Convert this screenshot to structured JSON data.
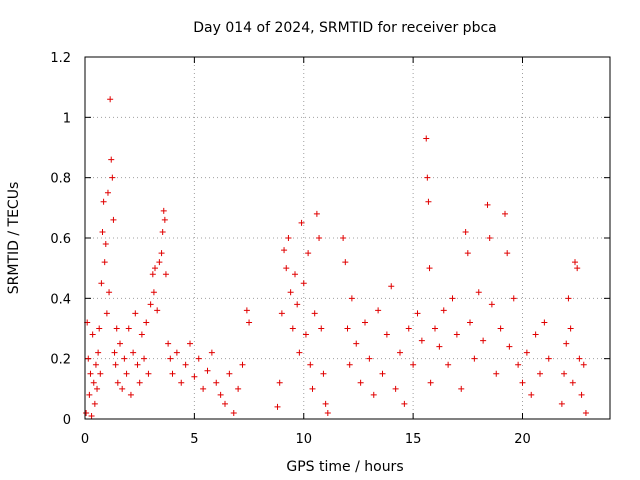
{
  "chart_data": {
    "type": "scatter",
    "title": "Day 014 of 2024, SRMTID for receiver pbca",
    "xlabel": "GPS time / hours",
    "ylabel": "SRMTID / TECUs",
    "xlim": [
      0,
      24
    ],
    "ylim": [
      0,
      1.2
    ],
    "x_ticks": [
      0,
      5,
      10,
      15,
      20
    ],
    "x_tick_labels": [
      "0",
      "5",
      "10",
      "15",
      "20"
    ],
    "y_ticks": [
      0,
      0.2,
      0.4,
      0.6,
      0.8,
      1,
      1.2
    ],
    "y_tick_labels": [
      "0",
      "0.2",
      "0.4",
      "0.6",
      "0.8",
      "1",
      "1.2"
    ],
    "grid": true,
    "marker": "plus",
    "color": "#e00000",
    "series": [
      {
        "name": "SRMTID",
        "points": [
          [
            0.05,
            0.02
          ],
          [
            0.1,
            0.32
          ],
          [
            0.15,
            0.2
          ],
          [
            0.2,
            0.08
          ],
          [
            0.25,
            0.15
          ],
          [
            0.3,
            0.01
          ],
          [
            0.35,
            0.28
          ],
          [
            0.4,
            0.12
          ],
          [
            0.45,
            0.05
          ],
          [
            0.5,
            0.18
          ],
          [
            0.55,
            0.1
          ],
          [
            0.6,
            0.22
          ],
          [
            0.65,
            0.3
          ],
          [
            0.7,
            0.15
          ],
          [
            0.75,
            0.45
          ],
          [
            0.8,
            0.62
          ],
          [
            0.85,
            0.72
          ],
          [
            0.9,
            0.52
          ],
          [
            0.95,
            0.58
          ],
          [
            1.0,
            0.35
          ],
          [
            1.05,
            0.75
          ],
          [
            1.1,
            0.42
          ],
          [
            1.15,
            1.06
          ],
          [
            1.2,
            0.86
          ],
          [
            1.25,
            0.8
          ],
          [
            1.3,
            0.66
          ],
          [
            1.35,
            0.22
          ],
          [
            1.4,
            0.18
          ],
          [
            1.45,
            0.3
          ],
          [
            1.5,
            0.12
          ],
          [
            1.6,
            0.25
          ],
          [
            1.7,
            0.1
          ],
          [
            1.8,
            0.2
          ],
          [
            1.9,
            0.15
          ],
          [
            2.0,
            0.3
          ],
          [
            2.1,
            0.08
          ],
          [
            2.2,
            0.22
          ],
          [
            2.3,
            0.35
          ],
          [
            2.4,
            0.18
          ],
          [
            2.5,
            0.12
          ],
          [
            2.6,
            0.28
          ],
          [
            2.7,
            0.2
          ],
          [
            2.8,
            0.32
          ],
          [
            2.9,
            0.15
          ],
          [
            3.0,
            0.38
          ],
          [
            3.1,
            0.48
          ],
          [
            3.15,
            0.42
          ],
          [
            3.2,
            0.5
          ],
          [
            3.3,
            0.36
          ],
          [
            3.4,
            0.52
          ],
          [
            3.5,
            0.55
          ],
          [
            3.55,
            0.62
          ],
          [
            3.6,
            0.69
          ],
          [
            3.65,
            0.66
          ],
          [
            3.7,
            0.48
          ],
          [
            3.8,
            0.25
          ],
          [
            3.9,
            0.2
          ],
          [
            4.0,
            0.15
          ],
          [
            4.2,
            0.22
          ],
          [
            4.4,
            0.12
          ],
          [
            4.6,
            0.18
          ],
          [
            4.8,
            0.25
          ],
          [
            5.0,
            0.14
          ],
          [
            5.2,
            0.2
          ],
          [
            5.4,
            0.1
          ],
          [
            5.6,
            0.16
          ],
          [
            5.8,
            0.22
          ],
          [
            6.0,
            0.12
          ],
          [
            6.2,
            0.08
          ],
          [
            6.4,
            0.05
          ],
          [
            6.6,
            0.15
          ],
          [
            6.8,
            0.02
          ],
          [
            7.0,
            0.1
          ],
          [
            7.2,
            0.18
          ],
          [
            7.4,
            0.36
          ],
          [
            7.5,
            0.32
          ],
          [
            8.8,
            0.04
          ],
          [
            8.9,
            0.12
          ],
          [
            9.0,
            0.35
          ],
          [
            9.1,
            0.56
          ],
          [
            9.2,
            0.5
          ],
          [
            9.3,
            0.6
          ],
          [
            9.4,
            0.42
          ],
          [
            9.5,
            0.3
          ],
          [
            9.6,
            0.48
          ],
          [
            9.7,
            0.38
          ],
          [
            9.8,
            0.22
          ],
          [
            9.9,
            0.65
          ],
          [
            10.0,
            0.45
          ],
          [
            10.1,
            0.28
          ],
          [
            10.2,
            0.55
          ],
          [
            10.3,
            0.18
          ],
          [
            10.4,
            0.1
          ],
          [
            10.5,
            0.35
          ],
          [
            10.6,
            0.68
          ],
          [
            10.7,
            0.6
          ],
          [
            10.8,
            0.3
          ],
          [
            10.9,
            0.15
          ],
          [
            11.0,
            0.05
          ],
          [
            11.1,
            0.02
          ],
          [
            11.8,
            0.6
          ],
          [
            11.9,
            0.52
          ],
          [
            12.0,
            0.3
          ],
          [
            12.1,
            0.18
          ],
          [
            12.2,
            0.4
          ],
          [
            12.4,
            0.25
          ],
          [
            12.6,
            0.12
          ],
          [
            12.8,
            0.32
          ],
          [
            13.0,
            0.2
          ],
          [
            13.2,
            0.08
          ],
          [
            13.4,
            0.36
          ],
          [
            13.6,
            0.15
          ],
          [
            13.8,
            0.28
          ],
          [
            14.0,
            0.44
          ],
          [
            14.2,
            0.1
          ],
          [
            14.4,
            0.22
          ],
          [
            14.6,
            0.05
          ],
          [
            14.8,
            0.3
          ],
          [
            15.0,
            0.18
          ],
          [
            15.2,
            0.35
          ],
          [
            15.4,
            0.26
          ],
          [
            15.6,
            0.93
          ],
          [
            15.65,
            0.8
          ],
          [
            15.7,
            0.72
          ],
          [
            15.75,
            0.5
          ],
          [
            15.8,
            0.12
          ],
          [
            16.0,
            0.3
          ],
          [
            16.2,
            0.24
          ],
          [
            16.4,
            0.36
          ],
          [
            16.6,
            0.18
          ],
          [
            16.8,
            0.4
          ],
          [
            17.0,
            0.28
          ],
          [
            17.2,
            0.1
          ],
          [
            17.4,
            0.62
          ],
          [
            17.5,
            0.55
          ],
          [
            17.6,
            0.32
          ],
          [
            17.8,
            0.2
          ],
          [
            18.0,
            0.42
          ],
          [
            18.2,
            0.26
          ],
          [
            18.4,
            0.71
          ],
          [
            18.5,
            0.6
          ],
          [
            18.6,
            0.38
          ],
          [
            18.8,
            0.15
          ],
          [
            19.0,
            0.3
          ],
          [
            19.2,
            0.68
          ],
          [
            19.3,
            0.55
          ],
          [
            19.4,
            0.24
          ],
          [
            19.6,
            0.4
          ],
          [
            19.8,
            0.18
          ],
          [
            20.0,
            0.12
          ],
          [
            20.2,
            0.22
          ],
          [
            20.4,
            0.08
          ],
          [
            20.6,
            0.28
          ],
          [
            20.8,
            0.15
          ],
          [
            21.0,
            0.32
          ],
          [
            21.2,
            0.2
          ],
          [
            21.8,
            0.05
          ],
          [
            21.9,
            0.15
          ],
          [
            22.0,
            0.25
          ],
          [
            22.1,
            0.4
          ],
          [
            22.2,
            0.3
          ],
          [
            22.3,
            0.12
          ],
          [
            22.4,
            0.52
          ],
          [
            22.5,
            0.5
          ],
          [
            22.6,
            0.2
          ],
          [
            22.7,
            0.08
          ],
          [
            22.8,
            0.18
          ],
          [
            22.9,
            0.02
          ]
        ]
      }
    ]
  }
}
